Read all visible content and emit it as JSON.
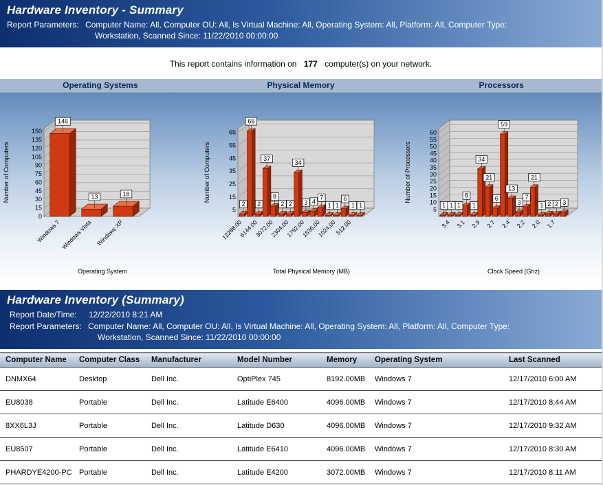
{
  "header1": {
    "title": "Hardware Inventory - Summary",
    "params_label": "Report Parameters:",
    "params_line1": "Computer Name:  All, Computer OU:  All, Is Virtual Machine:  All, Operating System:  All, Platform:  All, Computer Type:",
    "params_line2": "Workstation, Scanned Since:  11/22/2010 00:00:00"
  },
  "summary": {
    "prefix": "This report contains information on",
    "count": "177",
    "suffix": "computer(s) on your network."
  },
  "chart_data": [
    {
      "type": "bar",
      "title": "Operating Systems",
      "ylabel": "Number of Computers",
      "xlabel": "Operating System",
      "y_ticks": [
        0,
        15,
        30,
        45,
        60,
        75,
        90,
        105,
        120,
        135,
        150
      ],
      "ymax": 155,
      "categories": [
        "Windows 7",
        "Windows Vista",
        "Windows XP"
      ],
      "values": [
        146,
        13,
        18
      ],
      "x_tick_labels": [
        "Windows 7",
        "Windows Vista",
        "Windows XP"
      ],
      "x_label_indices": [
        0,
        1,
        2
      ],
      "bar_color": "#cf3a12",
      "grid": "on",
      "legend": "none"
    },
    {
      "type": "bar",
      "title": "Physical Memory",
      "ylabel": "Number of Computers",
      "xlabel": "Total Physical Memory (MB)",
      "y_ticks": [
        5,
        15,
        25,
        35,
        45,
        55,
        65
      ],
      "ymax": 68,
      "values": [
        2,
        66,
        2,
        37,
        8,
        2,
        2,
        34,
        3,
        4,
        7,
        1,
        1,
        6,
        1,
        1
      ],
      "x_tick_labels": [
        "12288.00",
        "6144.00",
        "3072.00",
        "2304.00",
        "1792.00",
        "1536.00",
        "1024.00",
        "512.00"
      ],
      "x_label_indices": [
        0,
        2,
        4,
        6,
        8,
        10,
        12,
        14
      ],
      "bar_color": "#cf3a12",
      "grid": "on",
      "legend": "none"
    },
    {
      "type": "bar",
      "title": "Processors",
      "ylabel": "Number of Processors",
      "xlabel": "Clock Speed (Ghz)",
      "y_ticks": [
        5,
        10,
        15,
        20,
        25,
        30,
        35,
        40,
        45,
        50,
        55,
        60
      ],
      "ymax": 63,
      "values": [
        1,
        1,
        1,
        8,
        1,
        34,
        21,
        6,
        59,
        13,
        3,
        7,
        21,
        1,
        2,
        2,
        3
      ],
      "x_tick_labels": [
        "3.4",
        "3.1",
        "2.9",
        "2.7",
        "2.4",
        "2.2",
        "2.0",
        "1.7"
      ],
      "x_label_indices": [
        1,
        3,
        5,
        7,
        9,
        11,
        13,
        15
      ],
      "bar_color": "#cf3a12",
      "grid": "on",
      "legend": "none"
    }
  ],
  "header2": {
    "title": "Hardware Inventory (Summary)",
    "date_label": "Report Date/Time:",
    "date_value": "12/22/2010 8:21 AM",
    "params_label": "Report Parameters:",
    "params_line1": "Computer Name:  All, Computer OU:  All, Is Virtual Machine:  All, Operating System:  All, Platform:  All, Computer Type:",
    "params_line2": "Workstation, Scanned Since:  11/22/2010 00:00:00"
  },
  "table": {
    "columns": [
      "Computer Name",
      "Computer Class",
      "Manufacturer",
      "Model Number",
      "Memory",
      "Operating System",
      "Last Scanned"
    ],
    "rows": [
      [
        "DNMX64",
        "Desktop",
        "Dell Inc.",
        "OptiPlex 745",
        "8192.00MB",
        "Windows 7",
        "12/17/2010 6:00 AM"
      ],
      [
        "EU8038",
        "Portable",
        "Dell Inc.",
        "Latitude E6400",
        "4096.00MB",
        "Windows 7",
        "12/17/2010 8:44 AM"
      ],
      [
        "8XX6L3J",
        "Portable",
        "Dell Inc.",
        "Latitude D630",
        "4096.00MB",
        "Windows 7",
        "12/17/2010 9:32 AM"
      ],
      [
        "EU8507",
        "Portable",
        "Dell Inc.",
        "Latitude E6410",
        "4096.00MB",
        "Windows 7",
        "12/17/2010 8:30 AM"
      ],
      [
        "PHARDYE4200-PC",
        "Portable",
        "Dell Inc.",
        "Latitude E4200",
        "3072.00MB",
        "Windows 7",
        "12/17/2010 8:11 AM"
      ]
    ]
  },
  "colors": {
    "header_gradient_start": "#0d2f70",
    "header_gradient_end": "#8aabd4",
    "bar_front": "#cf3a12",
    "bar_top": "#e87045",
    "bar_side": "#93270a",
    "panel_top": "#567fb4",
    "strip": "#a6b9cf"
  }
}
